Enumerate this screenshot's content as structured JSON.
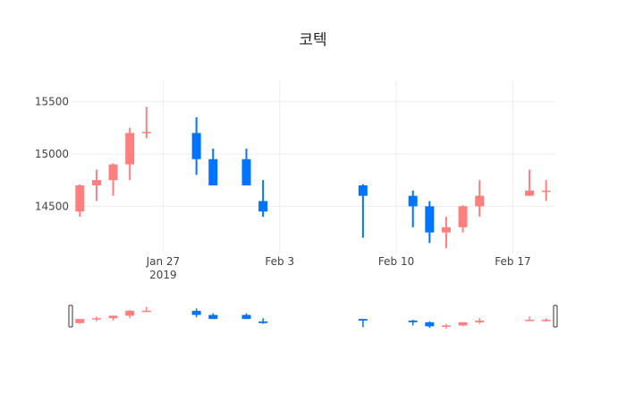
{
  "chart_data": {
    "type": "candlestick",
    "title": "코텍",
    "xlabel": "",
    "ylabel": "",
    "x_ticks": [
      {
        "date": "2019-01-27",
        "label": "Jan 27",
        "sublabel": "2019"
      },
      {
        "date": "2019-02-03",
        "label": "Feb 3",
        "sublabel": ""
      },
      {
        "date": "2019-02-10",
        "label": "Feb 10",
        "sublabel": ""
      },
      {
        "date": "2019-02-17",
        "label": "Feb 17",
        "sublabel": ""
      }
    ],
    "y_ticks": [
      14500,
      15000,
      15500
    ],
    "y_tick_labels": [
      "14500",
      "15000",
      "15500"
    ],
    "ylim": [
      14050,
      15700
    ],
    "xlim": [
      "2019-01-21T12:00",
      "2019-02-19T12:00"
    ],
    "grid": true,
    "legend": "none",
    "colors": {
      "increasing": "#FF7F7F",
      "decreasing": "#0074FF",
      "grid": "#eeeeee",
      "text": "#444444"
    },
    "rangeslider": true,
    "candles": [
      {
        "date": "2019-01-22",
        "open": 14450,
        "high": 14710,
        "low": 14400,
        "close": 14700
      },
      {
        "date": "2019-01-23",
        "open": 14700,
        "high": 14850,
        "low": 14550,
        "close": 14750
      },
      {
        "date": "2019-01-24",
        "open": 14750,
        "high": 14910,
        "low": 14600,
        "close": 14900
      },
      {
        "date": "2019-01-25",
        "open": 14900,
        "high": 15250,
        "low": 14750,
        "close": 15200
      },
      {
        "date": "2019-01-26",
        "open": 15200,
        "high": 15450,
        "low": 15150,
        "close": 15210
      },
      {
        "date": "2019-01-29",
        "open": 15200,
        "high": 15350,
        "low": 14800,
        "close": 14950
      },
      {
        "date": "2019-01-30",
        "open": 14950,
        "high": 15050,
        "low": 14700,
        "close": 14700
      },
      {
        "date": "2019-02-01",
        "open": 14950,
        "high": 15050,
        "low": 14700,
        "close": 14700
      },
      {
        "date": "2019-02-02",
        "open": 14550,
        "high": 14750,
        "low": 14400,
        "close": 14450
      },
      {
        "date": "2019-02-08",
        "open": 14700,
        "high": 14710,
        "low": 14200,
        "close": 14600
      },
      {
        "date": "2019-02-11",
        "open": 14600,
        "high": 14650,
        "low": 14300,
        "close": 14500
      },
      {
        "date": "2019-02-12",
        "open": 14500,
        "high": 14550,
        "low": 14150,
        "close": 14250
      },
      {
        "date": "2019-02-13",
        "open": 14250,
        "high": 14400,
        "low": 14100,
        "close": 14300
      },
      {
        "date": "2019-02-14",
        "open": 14300,
        "high": 14510,
        "low": 14250,
        "close": 14500
      },
      {
        "date": "2019-02-15",
        "open": 14500,
        "high": 14750,
        "low": 14400,
        "close": 14600
      },
      {
        "date": "2019-02-18",
        "open": 14600,
        "high": 14850,
        "low": 14600,
        "close": 14650
      },
      {
        "date": "2019-02-19",
        "open": 14650,
        "high": 14750,
        "low": 14550,
        "close": 14650
      }
    ]
  }
}
